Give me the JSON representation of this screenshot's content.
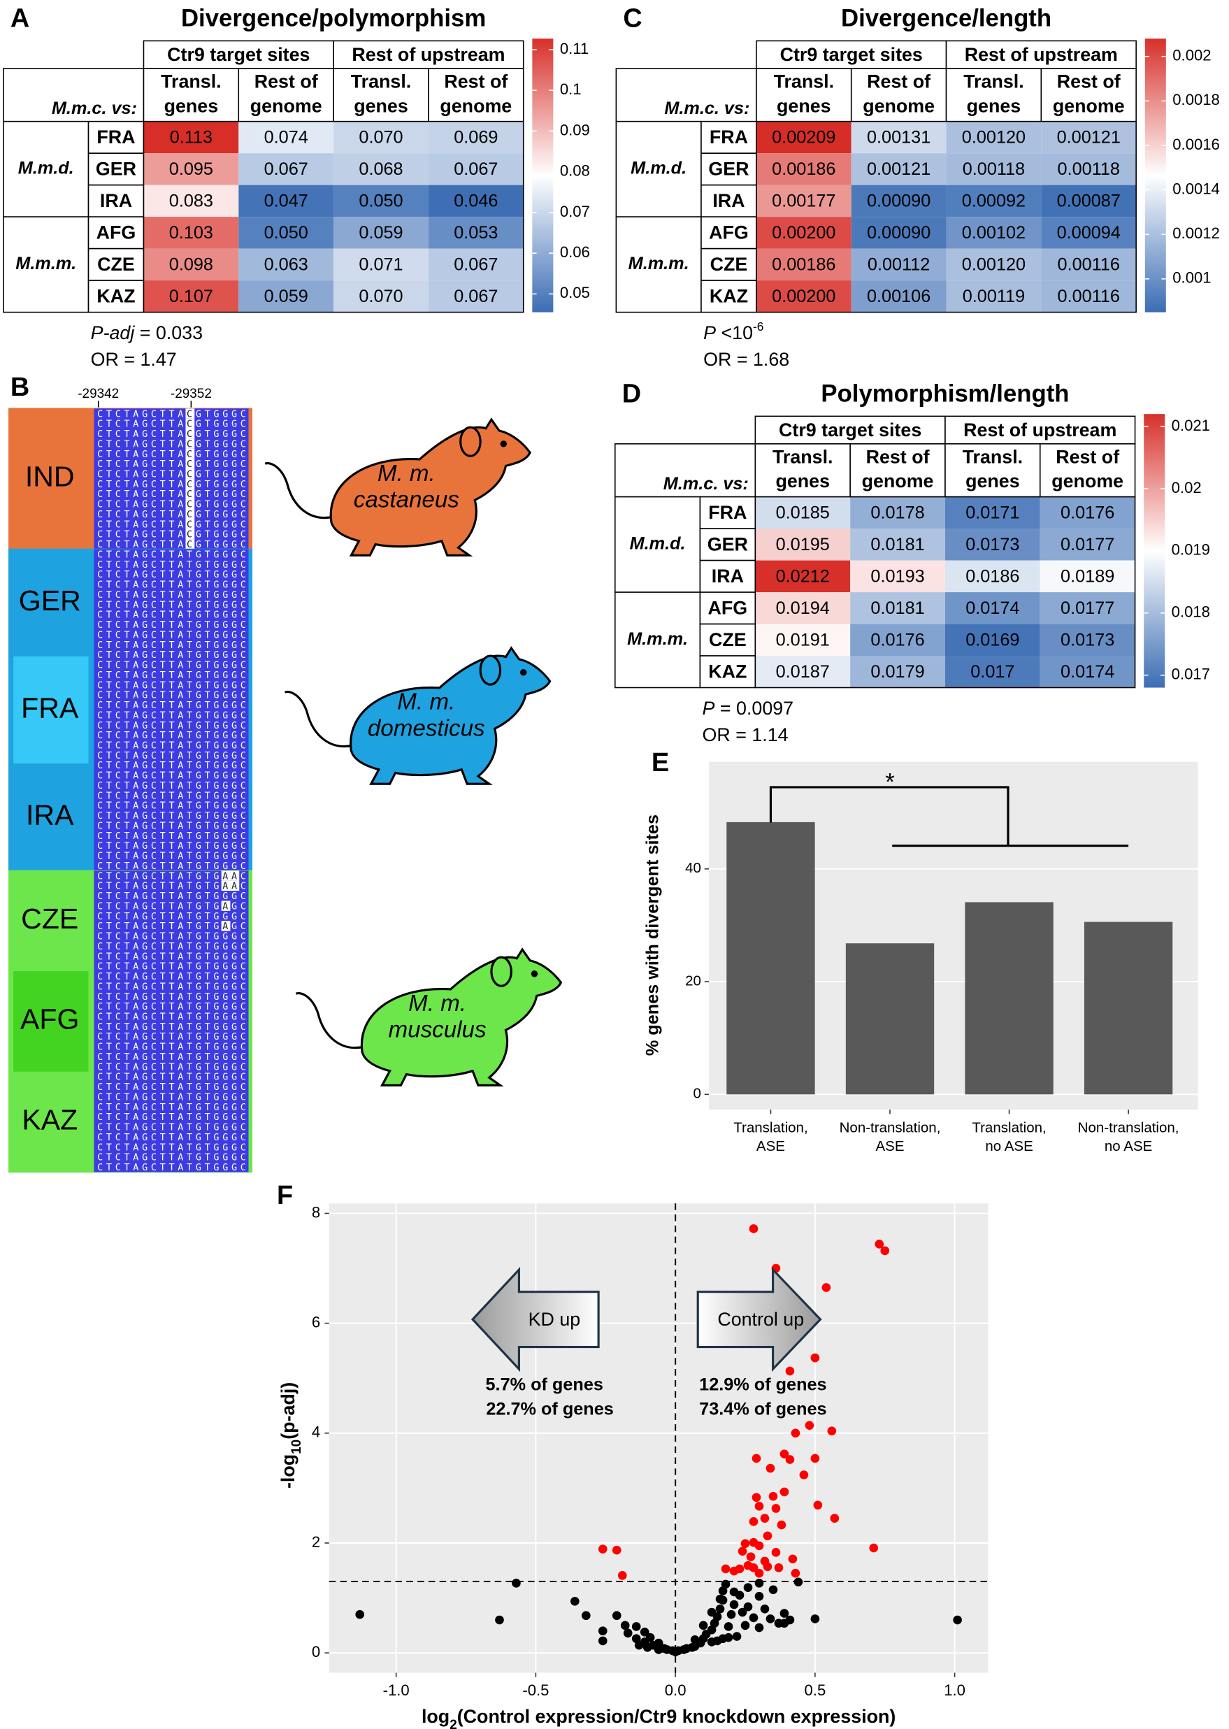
{
  "chart_data": [
    {
      "type": "heatmap",
      "panel": "A",
      "title": "Divergence/polymorphism",
      "column_groups": [
        "Ctr9 target sites",
        "Rest of upstream"
      ],
      "columns": [
        [
          "Transl.",
          "genes"
        ],
        [
          "Rest of",
          "genome"
        ],
        [
          "Transl.",
          "genes"
        ],
        [
          "Rest of",
          "genome"
        ]
      ],
      "row_header": "M.m.c. vs:",
      "row_groups": [
        "M.m.d.",
        "M.m.m."
      ],
      "rows": [
        "FRA",
        "GER",
        "IRA",
        "AFG",
        "CZE",
        "KAZ"
      ],
      "values": [
        [
          0.113,
          0.074,
          0.07,
          0.069
        ],
        [
          0.095,
          0.067,
          0.068,
          0.067
        ],
        [
          0.083,
          0.047,
          0.05,
          0.046
        ],
        [
          0.103,
          0.05,
          0.059,
          0.053
        ],
        [
          0.098,
          0.063,
          0.071,
          0.067
        ],
        [
          0.107,
          0.059,
          0.07,
          0.067
        ]
      ],
      "value_labels": [
        [
          "0.113",
          "0.074",
          "0.070",
          "0.069"
        ],
        [
          "0.095",
          "0.067",
          "0.068",
          "0.067"
        ],
        [
          "0.083",
          "0.047",
          "0.050",
          "0.046"
        ],
        [
          "0.103",
          "0.050",
          "0.059",
          "0.053"
        ],
        [
          "0.098",
          "0.063",
          "0.071",
          "0.067"
        ],
        [
          "0.107",
          "0.059",
          "0.070",
          "0.067"
        ]
      ],
      "clim": [
        0.0455,
        0.1127
      ],
      "cticks": [
        0.05,
        0.06,
        0.07,
        0.08,
        0.09,
        0.1,
        0.11
      ],
      "colors": [
        "#3b6db4",
        "#ffffff",
        "#d7302a"
      ],
      "stat": [
        {
          "text": "P-adj",
          "italic": true
        },
        {
          "text": " = 0.033"
        }
      ],
      "odds": "OR = 1.47"
    },
    {
      "type": "heatmap",
      "panel": "C",
      "title": "Divergence/length",
      "column_groups": [
        "Ctr9 target sites",
        "Rest of upstream"
      ],
      "columns": [
        [
          "Transl.",
          "genes"
        ],
        [
          "Rest of",
          "genome"
        ],
        [
          "Transl.",
          "genes"
        ],
        [
          "Rest of",
          "genome"
        ]
      ],
      "row_header": "M.m.c. vs:",
      "row_groups": [
        "M.m.d.",
        "M.m.m."
      ],
      "rows": [
        "FRA",
        "GER",
        "IRA",
        "AFG",
        "CZE",
        "KAZ"
      ],
      "values": [
        [
          0.00209,
          0.00131,
          0.0012,
          0.00121
        ],
        [
          0.00186,
          0.00121,
          0.00118,
          0.00118
        ],
        [
          0.00177,
          0.0009,
          0.00092,
          0.00087
        ],
        [
          0.002,
          0.0009,
          0.00102,
          0.00094
        ],
        [
          0.00186,
          0.00112,
          0.0012,
          0.00116
        ],
        [
          0.002,
          0.00106,
          0.00119,
          0.00116
        ]
      ],
      "value_labels": [
        [
          "0.00209",
          "0.00131",
          "0.00120",
          "0.00121"
        ],
        [
          "0.00186",
          "0.00121",
          "0.00118",
          "0.00118"
        ],
        [
          "0.00177",
          "0.00090",
          "0.00092",
          "0.00087"
        ],
        [
          "0.00200",
          "0.00090",
          "0.00102",
          "0.00094"
        ],
        [
          "0.00186",
          "0.00112",
          "0.00120",
          "0.00116"
        ],
        [
          "0.00200",
          "0.00106",
          "0.00119",
          "0.00116"
        ]
      ],
      "clim": [
        0.00085,
        0.00208
      ],
      "cticks": [
        0.001,
        0.0012,
        0.0014,
        0.0016,
        0.0018,
        0.002
      ],
      "colors": [
        "#3b6db4",
        "#ffffff",
        "#d7302a"
      ],
      "stat": [
        {
          "text": "P",
          "italic": true
        },
        {
          "text": " <10"
        },
        {
          "text": "-6",
          "sup": true
        }
      ],
      "odds": "OR = 1.68"
    },
    {
      "type": "heatmap",
      "panel": "D",
      "title": "Polymorphism/length",
      "column_groups": [
        "Ctr9 target sites",
        "Rest of upstream"
      ],
      "columns": [
        [
          "Transl.",
          "genes"
        ],
        [
          "Rest of",
          "genome"
        ],
        [
          "Transl.",
          "genes"
        ],
        [
          "Rest of",
          "genome"
        ]
      ],
      "row_header": "M.m.c. vs:",
      "row_groups": [
        "M.m.d.",
        "M.m.m."
      ],
      "rows": [
        "FRA",
        "GER",
        "IRA",
        "AFG",
        "CZE",
        "KAZ"
      ],
      "values": [
        [
          0.0185,
          0.0178,
          0.0171,
          0.0176
        ],
        [
          0.0195,
          0.0181,
          0.0173,
          0.0177
        ],
        [
          0.0212,
          0.0193,
          0.0186,
          0.0189
        ],
        [
          0.0194,
          0.0181,
          0.0174,
          0.0177
        ],
        [
          0.0191,
          0.0176,
          0.0169,
          0.0173
        ],
        [
          0.0187,
          0.0179,
          0.017,
          0.0174
        ]
      ],
      "clim": [
        0.0168,
        0.0212
      ],
      "cticks": [
        0.017,
        0.018,
        0.019,
        0.02,
        0.021
      ],
      "colors": [
        "#3b6db4",
        "#ffffff",
        "#d7302a"
      ],
      "stat": [
        {
          "text": "P",
          "italic": true
        },
        {
          "text": " = 0.0097"
        }
      ],
      "odds": "OR = 1.14"
    },
    {
      "type": "bar",
      "panel": "E",
      "ylabel": "% genes with divergent sites",
      "categories": [
        [
          "Translation,",
          "ASE"
        ],
        [
          "Non-translation,",
          "ASE"
        ],
        [
          "Translation,",
          "no ASE"
        ],
        [
          "Non-translation,",
          "no ASE"
        ]
      ],
      "values": [
        48.3,
        26.8,
        34.1,
        30.6
      ],
      "color": "#595959",
      "ylim": [
        -2.7,
        59
      ],
      "yticks": [
        0,
        20,
        40
      ],
      "grid": true,
      "annotation": "*"
    },
    {
      "type": "scatter",
      "panel": "F",
      "xlabel": [
        {
          "text": "log"
        },
        {
          "text": "2",
          "sub": true
        },
        {
          "text": "(Control expression/Ctr9 knockdown expression)"
        }
      ],
      "ylabel": [
        {
          "text": "-log"
        },
        {
          "text": "10",
          "sub": true
        },
        {
          "text": "(p-adj)"
        }
      ],
      "xlim": [
        -1.24,
        1.12
      ],
      "ylim": [
        -0.36,
        8.18
      ],
      "xticks": [
        {
          "value": -1,
          "label": "-1.0"
        },
        -0.5,
        {
          "value": 0,
          "label": "0.0"
        },
        0.5,
        {
          "value": 1,
          "label": "1.0"
        }
      ],
      "yticks": [
        0,
        2,
        4,
        6,
        8
      ],
      "grid": true,
      "hline": 1.3,
      "vline": 0,
      "arrows": [
        "KD up",
        "Control up"
      ],
      "notes": [
        {
          "text": "5.7% of genes",
          "color": "#ff0000"
        },
        {
          "text": "22.7% of genes",
          "color": "#000000"
        },
        {
          "text": "12.9% of genes",
          "color": "#ff0000"
        },
        {
          "text": "73.4% of genes",
          "color": "#000000"
        }
      ],
      "series": [
        {
          "color": "#ff0000",
          "x": [
            0.28,
            0.73,
            0.75,
            0.36,
            0.54,
            0.5,
            0.41,
            0.48,
            0.56,
            0.43,
            0.5,
            0.39,
            0.41,
            0.29,
            0.34,
            0.46,
            0.39,
            0.35,
            0.29,
            0.3,
            0.36,
            0.32,
            0.28,
            0.51,
            0.57,
            0.38,
            0.28,
            0.3,
            0.25,
            0.33,
            0.24,
            0.27,
            0.32,
            0.36,
            0.26,
            0.28,
            0.33,
            0.37,
            0.42,
            0.43,
            0.21,
            0.18,
            0.23,
            0.3,
            0.71,
            -0.26,
            -0.21,
            -0.19
          ],
          "values": [
            7.72,
            7.44,
            7.32,
            7.0,
            6.65,
            5.37,
            5.13,
            4.14,
            4.04,
            4.0,
            3.54,
            3.62,
            3.52,
            3.54,
            3.36,
            3.24,
            2.93,
            2.85,
            2.83,
            2.67,
            2.63,
            2.45,
            2.39,
            2.69,
            2.45,
            2.33,
            2.01,
            1.95,
            1.99,
            2.13,
            1.85,
            1.75,
            1.67,
            1.83,
            1.59,
            1.55,
            1.57,
            1.55,
            1.71,
            1.45,
            1.49,
            1.53,
            1.53,
            1.45,
            1.91,
            1.89,
            1.87,
            1.41
          ]
        },
        {
          "color": "#000000",
          "x": [
            -1.13,
            1.01,
            -0.63,
            -0.57,
            -0.36,
            -0.32,
            -0.26,
            -0.26,
            -0.21,
            -0.18,
            -0.17,
            -0.14,
            -0.14,
            -0.11,
            -0.11,
            -0.09,
            -0.08,
            -0.06,
            -0.04,
            -0.03,
            -0.01,
            0,
            0.01,
            0.03,
            0.04,
            0.06,
            0.07,
            0.09,
            0.1,
            0.11,
            0.13,
            0.14,
            0.15,
            0.16,
            0.17,
            0.17,
            0.18,
            0.19,
            0.2,
            0.21,
            0.23,
            0.24,
            0.25,
            0.26,
            0.28,
            0.3,
            0.3,
            0.32,
            0.34,
            0.35,
            0.37,
            0.39,
            0.39,
            0.41,
            0.44,
            0.5,
            0.13,
            0.15,
            0.17,
            0.19,
            0.22,
            -0.13,
            -0.1,
            -0.06,
            0.07,
            0.1,
            0.13,
            0.16,
            0.21,
            0.26,
            0.3
          ],
          "values": [
            0.7,
            0.6,
            0.6,
            1.27,
            0.94,
            0.68,
            0.4,
            0.22,
            0.68,
            0.5,
            0.36,
            0.48,
            0.26,
            0.38,
            0.2,
            0.28,
            0.14,
            0.18,
            0.08,
            0.06,
            0.04,
            0.02,
            0.04,
            0.06,
            0.08,
            0.1,
            0.12,
            0.18,
            0.26,
            0.34,
            0.42,
            0.54,
            0.66,
            0.8,
            0.96,
            1.13,
            1.25,
            0.48,
            0.7,
            0.88,
            1.05,
            0.74,
            0.5,
            0.84,
            0.64,
            1.03,
            0.46,
            0.8,
            0.62,
            1.15,
            0.54,
            0.72,
            0.54,
            0.6,
            1.29,
            0.62,
            0.2,
            0.22,
            0.26,
            0.28,
            0.3,
            0.14,
            0.1,
            0.06,
            0.24,
            0.5,
            0.74,
            0.98,
            1.11,
            1.19,
            1.27
          ]
        }
      ]
    }
  ],
  "alignment": {
    "panel": "B",
    "positions": [
      "-29342",
      "-29352"
    ],
    "subspecies": [
      {
        "name": [
          "M. m.",
          "castaneus"
        ],
        "color": "#e8743b",
        "populations": [
          {
            "label": "IND"
          }
        ],
        "sequences": [
          "CTCTAGCTTACGTGGGC",
          "CTCTAGCTTACGTGGGC",
          "CTCTAGCTTACGTGGGC",
          "CTCTAGCTTACGTGGGC",
          "CTCTAGCTTACGTGGGC",
          "CTCTAGCTTACGTGGGC",
          "CTCTAGCTTACGTGGGC",
          "CTCTAGCTTACGTGGGC",
          "CTCTAGCTTACGTGGGC",
          "CTCTAGCTTACGTGGGC",
          "CTCTAGCTTACGTGGGC",
          "CTCTAGCTTACGTGGGC",
          "CTCTAGCTTACGTGGGC",
          "CTCTAGCTTACGTGGGC"
        ]
      },
      {
        "name": [
          "M. m.",
          "domesticus"
        ],
        "color": "#1ea2e0",
        "populations": [
          {
            "label": "GER"
          },
          {
            "label": "FRA",
            "color": "#36c8f6"
          },
          {
            "label": "IRA"
          }
        ],
        "sequences": [
          "CTCTAGCTTATGTGGGC",
          "CTCTAGCTTATGTGGGC",
          "CTCTAGCTTATGTGGGC",
          "CTCTAGCTTATGTGGGC",
          "CTCTAGCTTATGTGGGC",
          "CTCTAGCTTATGTGGGC",
          "CTCTAGCTTATGTGGGC",
          "CTCTAGCTTATGTGGGC",
          "CTCTAGCTTATGTGGGC",
          "CTCTAGCTTATGTGGGC",
          "CTCTAGCTTATGTGGGC",
          "CTCTAGCTTATGTGGGC",
          "CTCTAGCTTATGTGGGC",
          "CTCTAGCTTATGTGGGC",
          "CTCTAGCTTATGTGGGC",
          "CTCTAGCTTATGTGGGC",
          "CTCTAGCTTATGTGGGC",
          "CTCTAGCTTATGTGGGC",
          "CTCTAGCTTATGTGGGC",
          "CTCTAGCTTATGTGGGC",
          "CTCTAGCTTATGTGGGC",
          "CTCTAGCTTATGTGGGC",
          "CTCTAGCTTATGTGGGC",
          "CTCTAGCTTATGTGGGC",
          "CTCTAGCTTATGTGGGC",
          "CTCTAGCTTATGTGGGC",
          "CTCTAGCTTATGTGGGC",
          "CTCTAGCTTATGTGGGC",
          "CTCTAGCTTATGTGGGC",
          "CTCTAGCTTATGTGGGC",
          "CTCTAGCTTATGTGGGC",
          "CTCTAGCTTATGTGGGC"
        ]
      },
      {
        "name": [
          "M. m.",
          "musculus"
        ],
        "color": "#6de64b",
        "populations": [
          {
            "label": "CZE"
          },
          {
            "label": "AFG",
            "color": "#43d421"
          },
          {
            "label": "KAZ"
          }
        ],
        "sequences": [
          "CTCTAGCTTATGTGAAC",
          "CTCTAGCTTATGTGAAC",
          "CTCTAGCTTATGTGGGC",
          "CTCTAGCTTATGTGAGC",
          "CTCTAGCTTATGTGGGC",
          "CTCTAGCTTATGTGAGC",
          "CTCTAGCTTATGTGGGC",
          "CTCTAGCTTATGTGGGC",
          "CTCTAGCTTATGTGGGC",
          "CTCTAGCTTATGTGGGC",
          "CTCTAGCTTATGTGGGC",
          "CTCTAGCTTATGTGGGC",
          "CTCTAGCTTATGTGGGC",
          "CTCTAGCTTATGTGGGC",
          "CTCTAGCTTATGTGGGC",
          "CTCTAGCTTATGTGGGC",
          "CTCTAGCTTATGTGGGC",
          "CTCTAGCTTATGTGGGC",
          "CTCTAGCTTATGTGGGC",
          "CTCTAGCTTATGTGGGC",
          "CTCTAGCTTATGTGGGC",
          "CTCTAGCTTATGTGGGC",
          "CTCTAGCTTATGTGGGC",
          "CTCTAGCTTATGTGGGC",
          "CTCTAGCTTATGTGGGC",
          "CTCTAGCTTATGTGGGC",
          "CTCTAGCTTATGTGGGC",
          "CTCTAGCTTATGTGGGC",
          "CTCTAGCTTATGTGGGC",
          "CTCTAGCTTATGTGGGC"
        ]
      }
    ]
  }
}
